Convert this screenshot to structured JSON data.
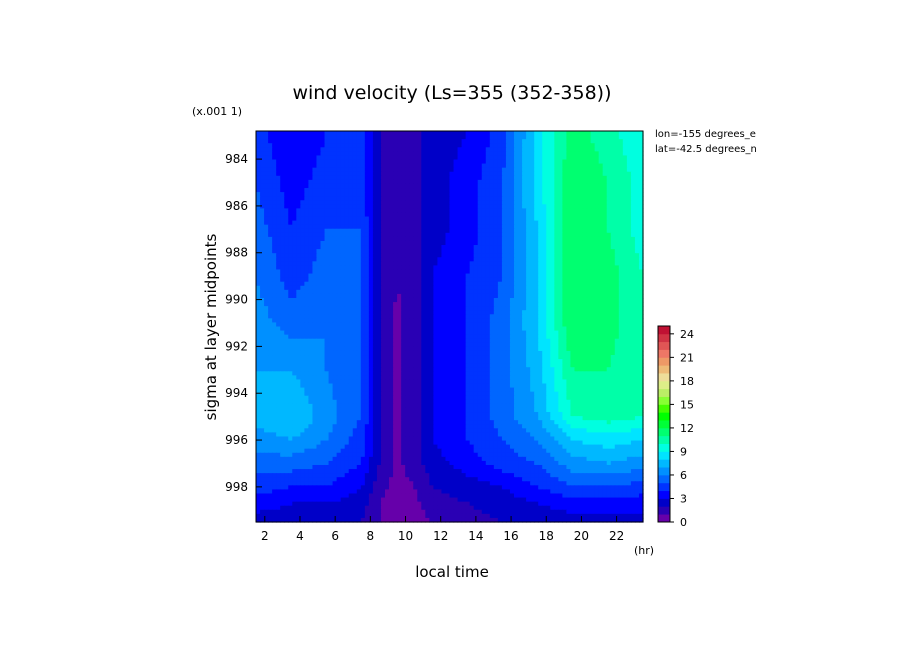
{
  "chart_data": {
    "type": "heatmap",
    "title": "wind velocity (Ls=355 (352-358))",
    "xlabel": "local time",
    "ylabel": "sigma at layer midpoints",
    "x_unit": "(hr)",
    "y_scale_note": "(x.001 1)",
    "annotations": [
      "lon=-155 degrees_e",
      "lat=-42.5 degrees_n"
    ],
    "xlim": [
      1.5,
      23.5
    ],
    "ylim": [
      0.9995,
      0.9828
    ],
    "x_ticks": [
      2,
      4,
      6,
      8,
      10,
      12,
      14,
      16,
      18,
      20,
      22
    ],
    "y_ticks": [
      0.984,
      0.986,
      0.988,
      0.99,
      0.992,
      0.994,
      0.996,
      0.998
    ],
    "y_tick_labels": [
      "984",
      "986",
      "988",
      "990",
      "992",
      "994",
      "996",
      "998"
    ],
    "x": [
      1.5,
      3.5,
      5.5,
      7.5,
      8.5,
      9.5,
      10.5,
      11.5,
      13.5,
      15.5,
      17.5,
      19.5,
      21.5,
      23.5
    ],
    "y": [
      0.983,
      0.985,
      0.987,
      0.989,
      0.991,
      0.993,
      0.995,
      0.996,
      0.997,
      0.998,
      0.9987,
      0.9995
    ],
    "z": [
      [
        4.5,
        3.0,
        4.0,
        4.5,
        2.0,
        1.0,
        1.5,
        2.5,
        3.0,
        4.5,
        8.5,
        11.5,
        10.5,
        9.0
      ],
      [
        5.0,
        3.5,
        4.5,
        4.5,
        2.0,
        1.0,
        1.5,
        2.5,
        3.5,
        5.0,
        8.5,
        12.0,
        11.0,
        9.5
      ],
      [
        5.5,
        4.0,
        5.0,
        5.0,
        2.0,
        1.0,
        1.5,
        2.5,
        3.5,
        5.0,
        8.0,
        12.0,
        11.0,
        9.5
      ],
      [
        6.0,
        4.5,
        5.5,
        5.0,
        2.0,
        1.0,
        1.5,
        3.0,
        4.0,
        5.0,
        8.0,
        12.0,
        11.5,
        10.0
      ],
      [
        6.5,
        5.5,
        6.0,
        5.0,
        2.0,
        0.8,
        1.5,
        3.0,
        4.0,
        5.5,
        8.0,
        12.0,
        11.5,
        10.0
      ],
      [
        7.0,
        7.0,
        6.0,
        5.0,
        2.0,
        0.8,
        1.5,
        3.0,
        4.0,
        5.5,
        7.5,
        11.0,
        11.0,
        10.0
      ],
      [
        7.5,
        8.0,
        6.5,
        5.0,
        2.0,
        0.8,
        1.5,
        3.0,
        4.0,
        5.5,
        7.0,
        10.0,
        10.5,
        10.0
      ],
      [
        6.5,
        7.0,
        6.0,
        4.5,
        2.0,
        0.8,
        1.5,
        3.0,
        4.0,
        5.0,
        6.0,
        8.0,
        8.5,
        8.0
      ],
      [
        5.5,
        5.5,
        5.0,
        4.0,
        2.0,
        0.8,
        1.5,
        2.5,
        3.5,
        4.5,
        5.0,
        6.5,
        7.0,
        6.5
      ],
      [
        4.5,
        4.0,
        4.0,
        3.0,
        1.5,
        0.5,
        1.0,
        2.0,
        2.5,
        3.0,
        4.0,
        5.0,
        5.0,
        4.5
      ],
      [
        3.5,
        3.0,
        3.0,
        2.5,
        1.0,
        0.3,
        0.8,
        1.5,
        2.0,
        2.5,
        3.0,
        3.5,
        3.5,
        3.5
      ],
      [
        2.5,
        2.5,
        2.5,
        2.0,
        1.0,
        0.3,
        0.5,
        1.0,
        1.5,
        2.0,
        2.5,
        2.5,
        2.5,
        2.5
      ]
    ],
    "colorbar": {
      "min": 0,
      "max": 25,
      "ticks": [
        0,
        3,
        6,
        9,
        12,
        15,
        18,
        21,
        24
      ],
      "colors": [
        "#6600aa",
        "#2a00b4",
        "#0000c8",
        "#0000ff",
        "#0033ff",
        "#0066ff",
        "#0090ff",
        "#00b8ff",
        "#00e4ff",
        "#00ffe0",
        "#00ffa8",
        "#00ff70",
        "#00ff38",
        "#00ff00",
        "#44ff00",
        "#88ff33",
        "#bbee66",
        "#ddee88",
        "#eedd99",
        "#eebb77",
        "#ee9966",
        "#ee7766",
        "#e05555",
        "#d03344",
        "#c01133"
      ]
    }
  }
}
